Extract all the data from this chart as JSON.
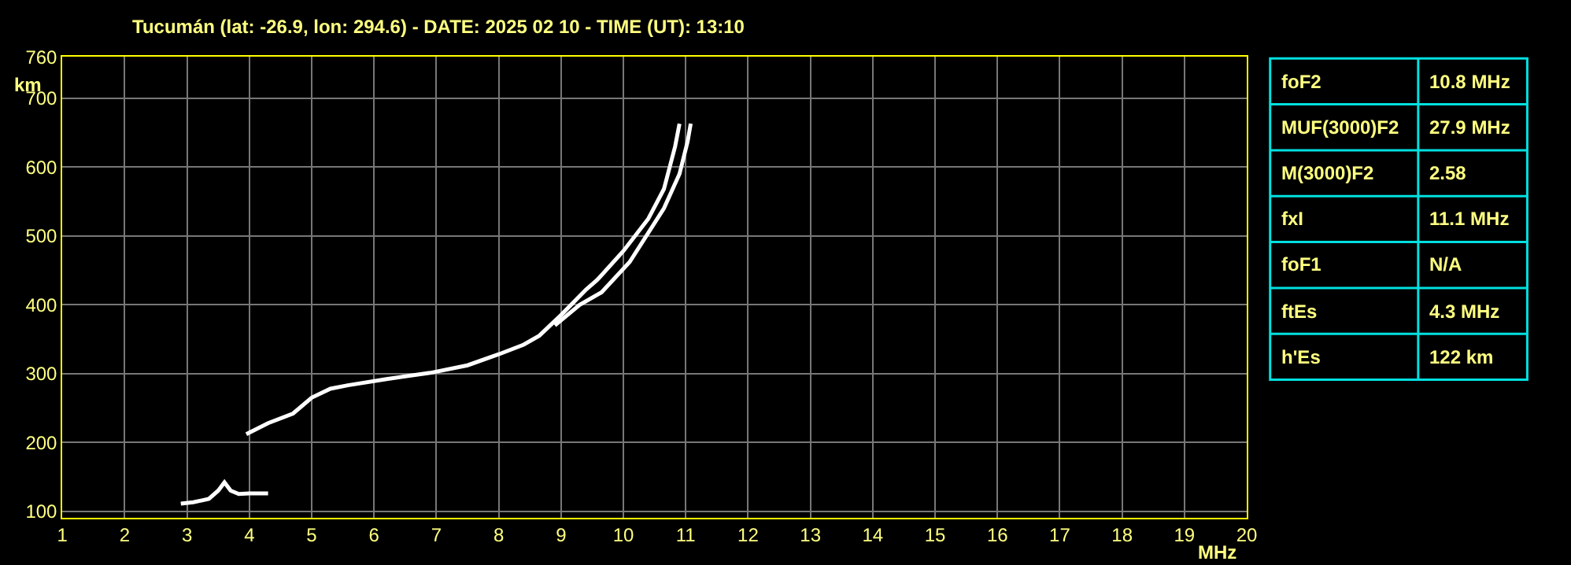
{
  "chart_data": [
    {
      "type": "line",
      "title": "Tucumán (lat: -26.9, lon: 294.6) - DATE: 2025 02 10 - TIME (UT): 13:10",
      "xlabel": "MHz",
      "ylabel": "km",
      "xlim": [
        1,
        20
      ],
      "xticks": [
        1,
        2,
        3,
        4,
        5,
        6,
        7,
        8,
        9,
        10,
        11,
        12,
        13,
        14,
        15,
        16,
        17,
        18,
        19,
        20
      ],
      "ylim": [
        91,
        760
      ],
      "yticks": [
        100,
        200,
        300,
        400,
        500,
        600,
        700,
        760
      ],
      "grid": true,
      "marker": "none",
      "line_style": "solid",
      "series": [
        {
          "color": "#ffffff",
          "x": [
            3.95,
            4.3,
            4.7,
            5.0,
            5.3,
            5.58,
            6.2,
            6.9,
            7.5,
            8.0,
            8.4,
            8.65,
            9.0,
            9.4,
            9.58,
            10.0,
            10.4,
            10.65,
            10.83,
            10.9
          ],
          "values": [
            212,
            228,
            242,
            265,
            278,
            283,
            292,
            301,
            312,
            328,
            342,
            355,
            385,
            422,
            436,
            478,
            525,
            568,
            630,
            663
          ]
        },
        {
          "color": "#ffffff",
          "x": [
            8.9,
            9.3,
            9.65,
            10.1,
            10.65,
            10.9,
            11.03,
            11.08
          ],
          "values": [
            370,
            400,
            418,
            462,
            540,
            590,
            637,
            663
          ]
        },
        {
          "color": "#ffffff",
          "x": [
            2.9,
            3.1,
            3.35,
            3.5,
            3.6,
            3.7,
            3.83,
            4.0,
            4.3
          ],
          "values": [
            111,
            113,
            118,
            130,
            142,
            130,
            125,
            126,
            126
          ]
        }
      ]
    },
    {
      "type": "other",
      "annotations": [
        "foF2",
        "10.8 MHz",
        "MUF(3000)F2",
        "27.9 MHz",
        "M(3000)F2",
        "2.58",
        "fxI",
        "11.1 MHz",
        "foF1",
        "N/A",
        "ftEs",
        "4.3 MHz",
        "h'Es",
        "122 km"
      ]
    }
  ]
}
